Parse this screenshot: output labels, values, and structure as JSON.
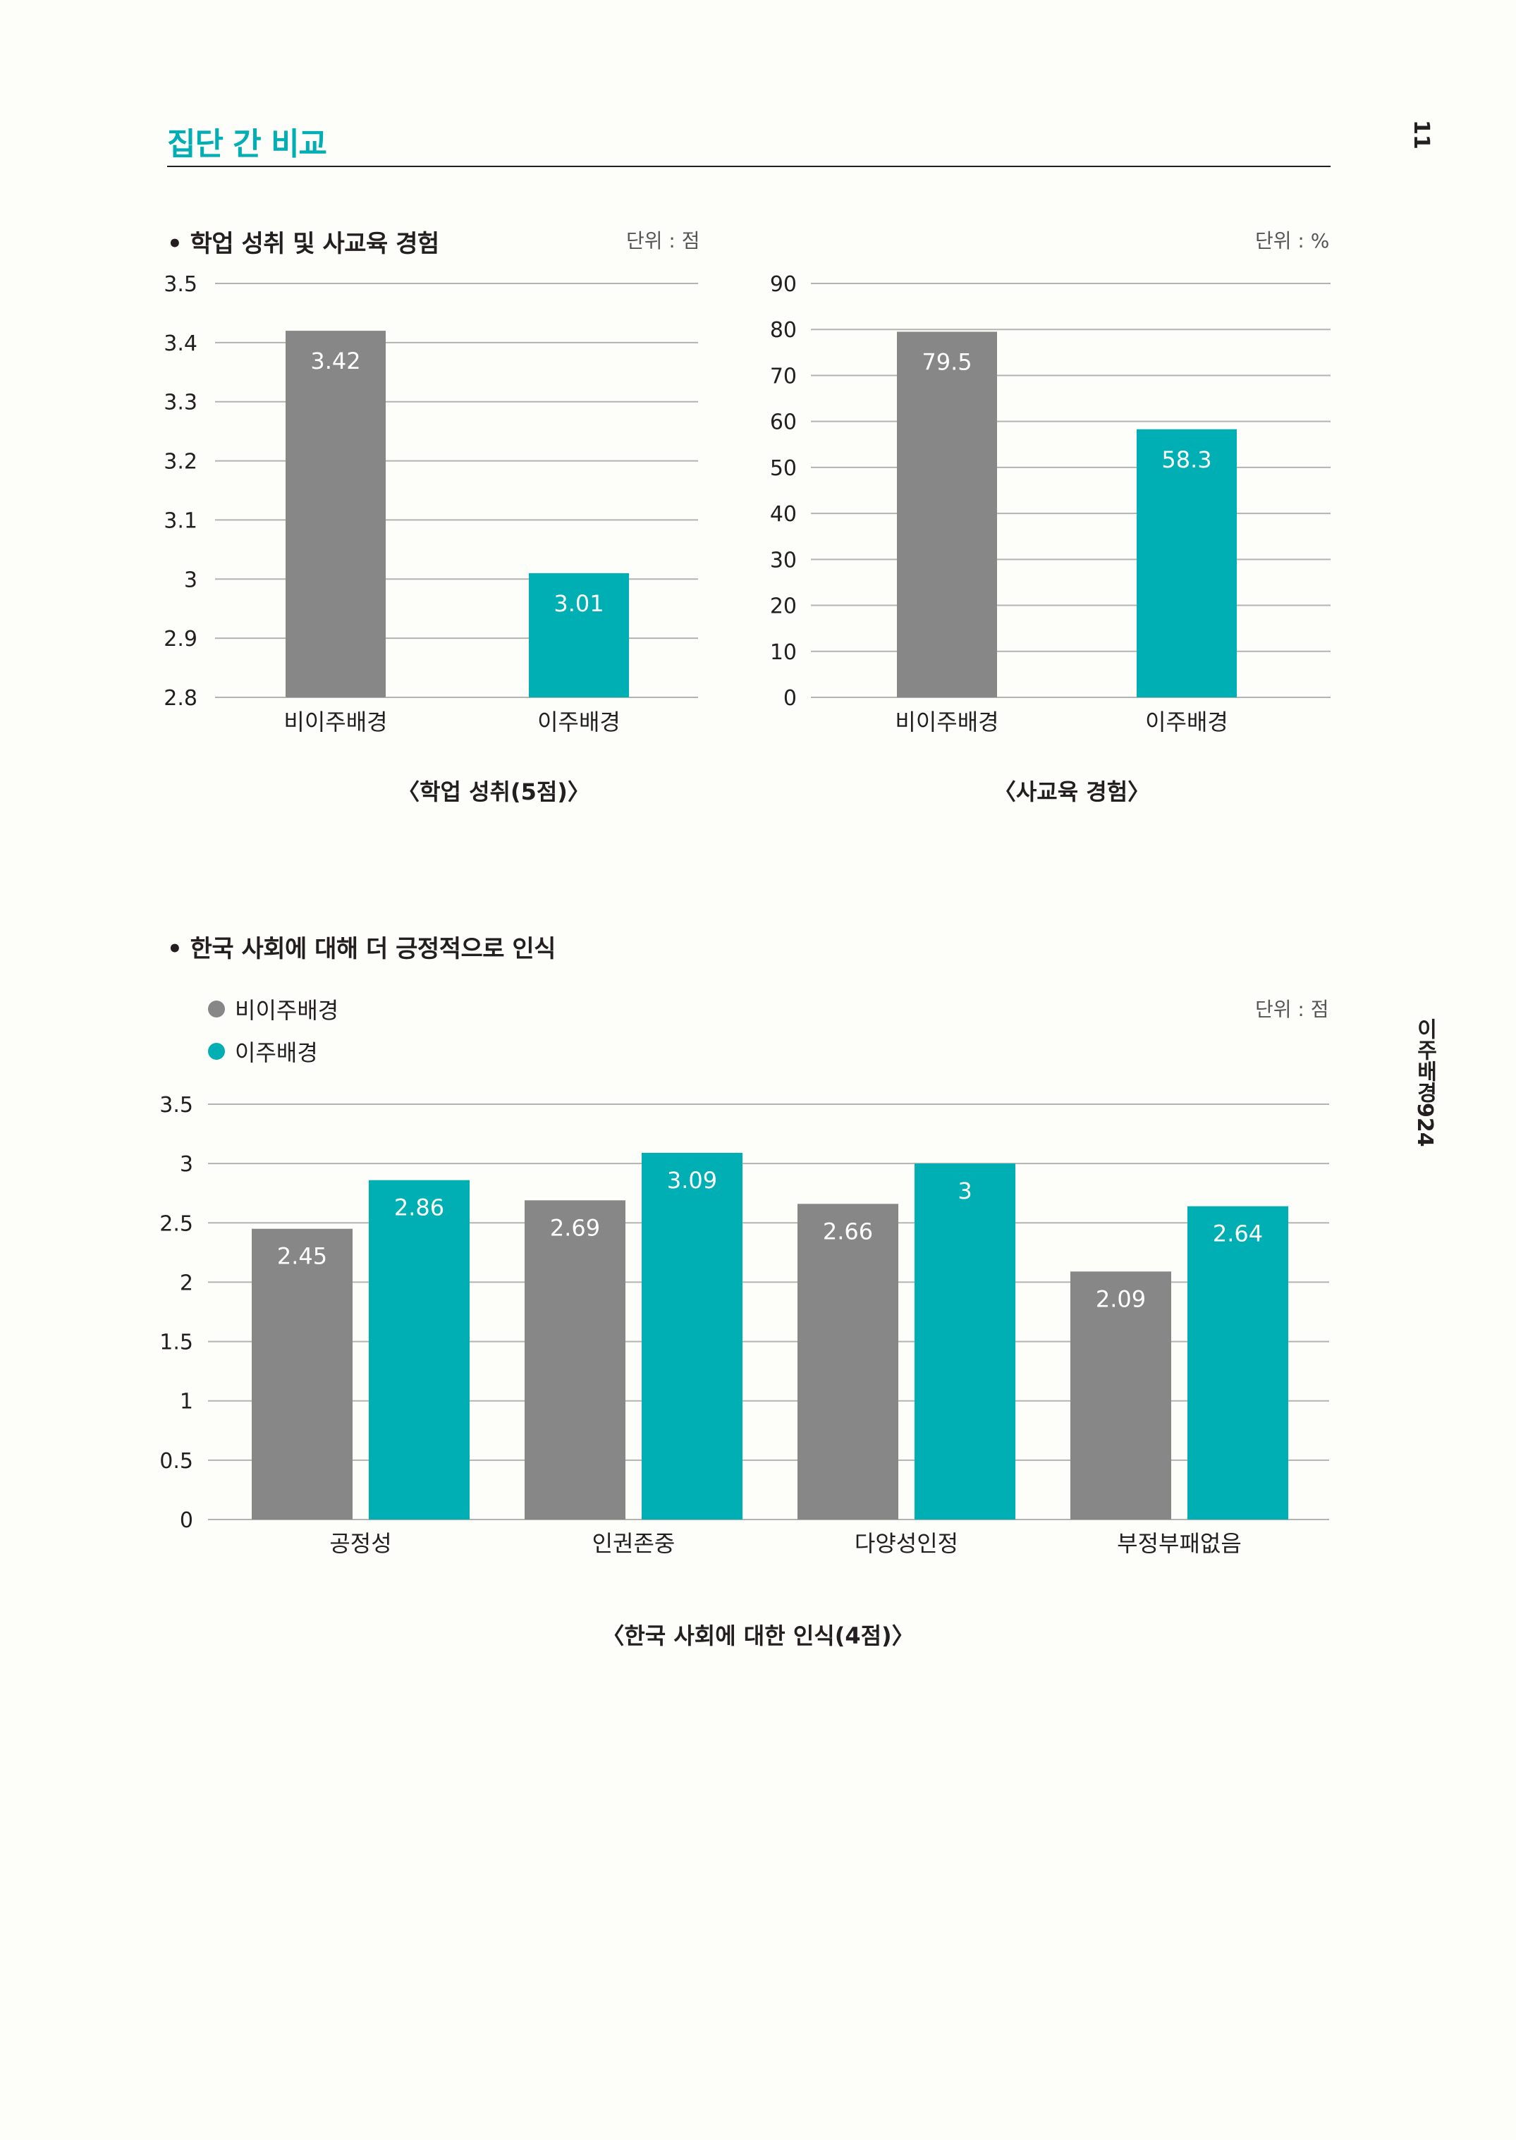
{
  "page": {
    "title": "집단 간 비교",
    "number": "11",
    "side_label": "이주배경924"
  },
  "colors": {
    "non_migrant": "#878787",
    "migrant": "#00afb3",
    "grid": "#b3b3b3"
  },
  "section1": {
    "title": "• 학업 성취 및 사교육 경험"
  },
  "section2": {
    "title": "• 한국 사회에 대해 더 긍정적으로 인식"
  },
  "chart_data": [
    {
      "type": "bar",
      "title": "〈학업 성취(5점)〉",
      "unit": "단위 : 점",
      "categories": [
        "비이주배경",
        "이주배경"
      ],
      "values": [
        3.42,
        3.01
      ],
      "value_labels": [
        "3.42",
        "3.01"
      ],
      "ylim": [
        2.8,
        3.5
      ],
      "yticks": [
        2.8,
        2.9,
        3,
        3.1,
        3.2,
        3.3,
        3.4,
        3.5
      ],
      "ytick_labels": [
        "2.8",
        "2.9",
        "3",
        "3.1",
        "3.2",
        "3.3",
        "3.4",
        "3.5"
      ],
      "grid": true
    },
    {
      "type": "bar",
      "title": "〈사교육 경험〉",
      "unit": "단위 : %",
      "categories": [
        "비이주배경",
        "이주배경"
      ],
      "values": [
        79.5,
        58.3
      ],
      "value_labels": [
        "79.5",
        "58.3"
      ],
      "ylim": [
        0,
        90
      ],
      "yticks": [
        0,
        10,
        20,
        30,
        40,
        50,
        60,
        70,
        80,
        90
      ],
      "ytick_labels": [
        "0",
        "10",
        "20",
        "30",
        "40",
        "50",
        "60",
        "70",
        "80",
        "90"
      ],
      "grid": true
    },
    {
      "type": "bar",
      "title": "〈한국 사회에 대한 인식(4점)〉",
      "unit": "단위 : 점",
      "categories": [
        "공정성",
        "인권존중",
        "다양성인정",
        "부정부패없음"
      ],
      "series": [
        {
          "name": "비이주배경",
          "values": [
            2.45,
            2.69,
            2.66,
            2.09
          ],
          "value_labels": [
            "2.45",
            "2.69",
            "2.66",
            "2.09"
          ]
        },
        {
          "name": "이주배경",
          "values": [
            2.86,
            3.09,
            3,
            2.64
          ],
          "value_labels": [
            "2.86",
            "3.09",
            "3",
            "2.64"
          ]
        }
      ],
      "ylim": [
        0,
        3.5
      ],
      "yticks": [
        0,
        0.5,
        1,
        1.5,
        2,
        2.5,
        3,
        3.5
      ],
      "ytick_labels": [
        "0",
        "0.5",
        "1",
        "1.5",
        "2",
        "2.5",
        "3",
        "3.5"
      ],
      "grid": true,
      "legend": "top-left"
    }
  ]
}
